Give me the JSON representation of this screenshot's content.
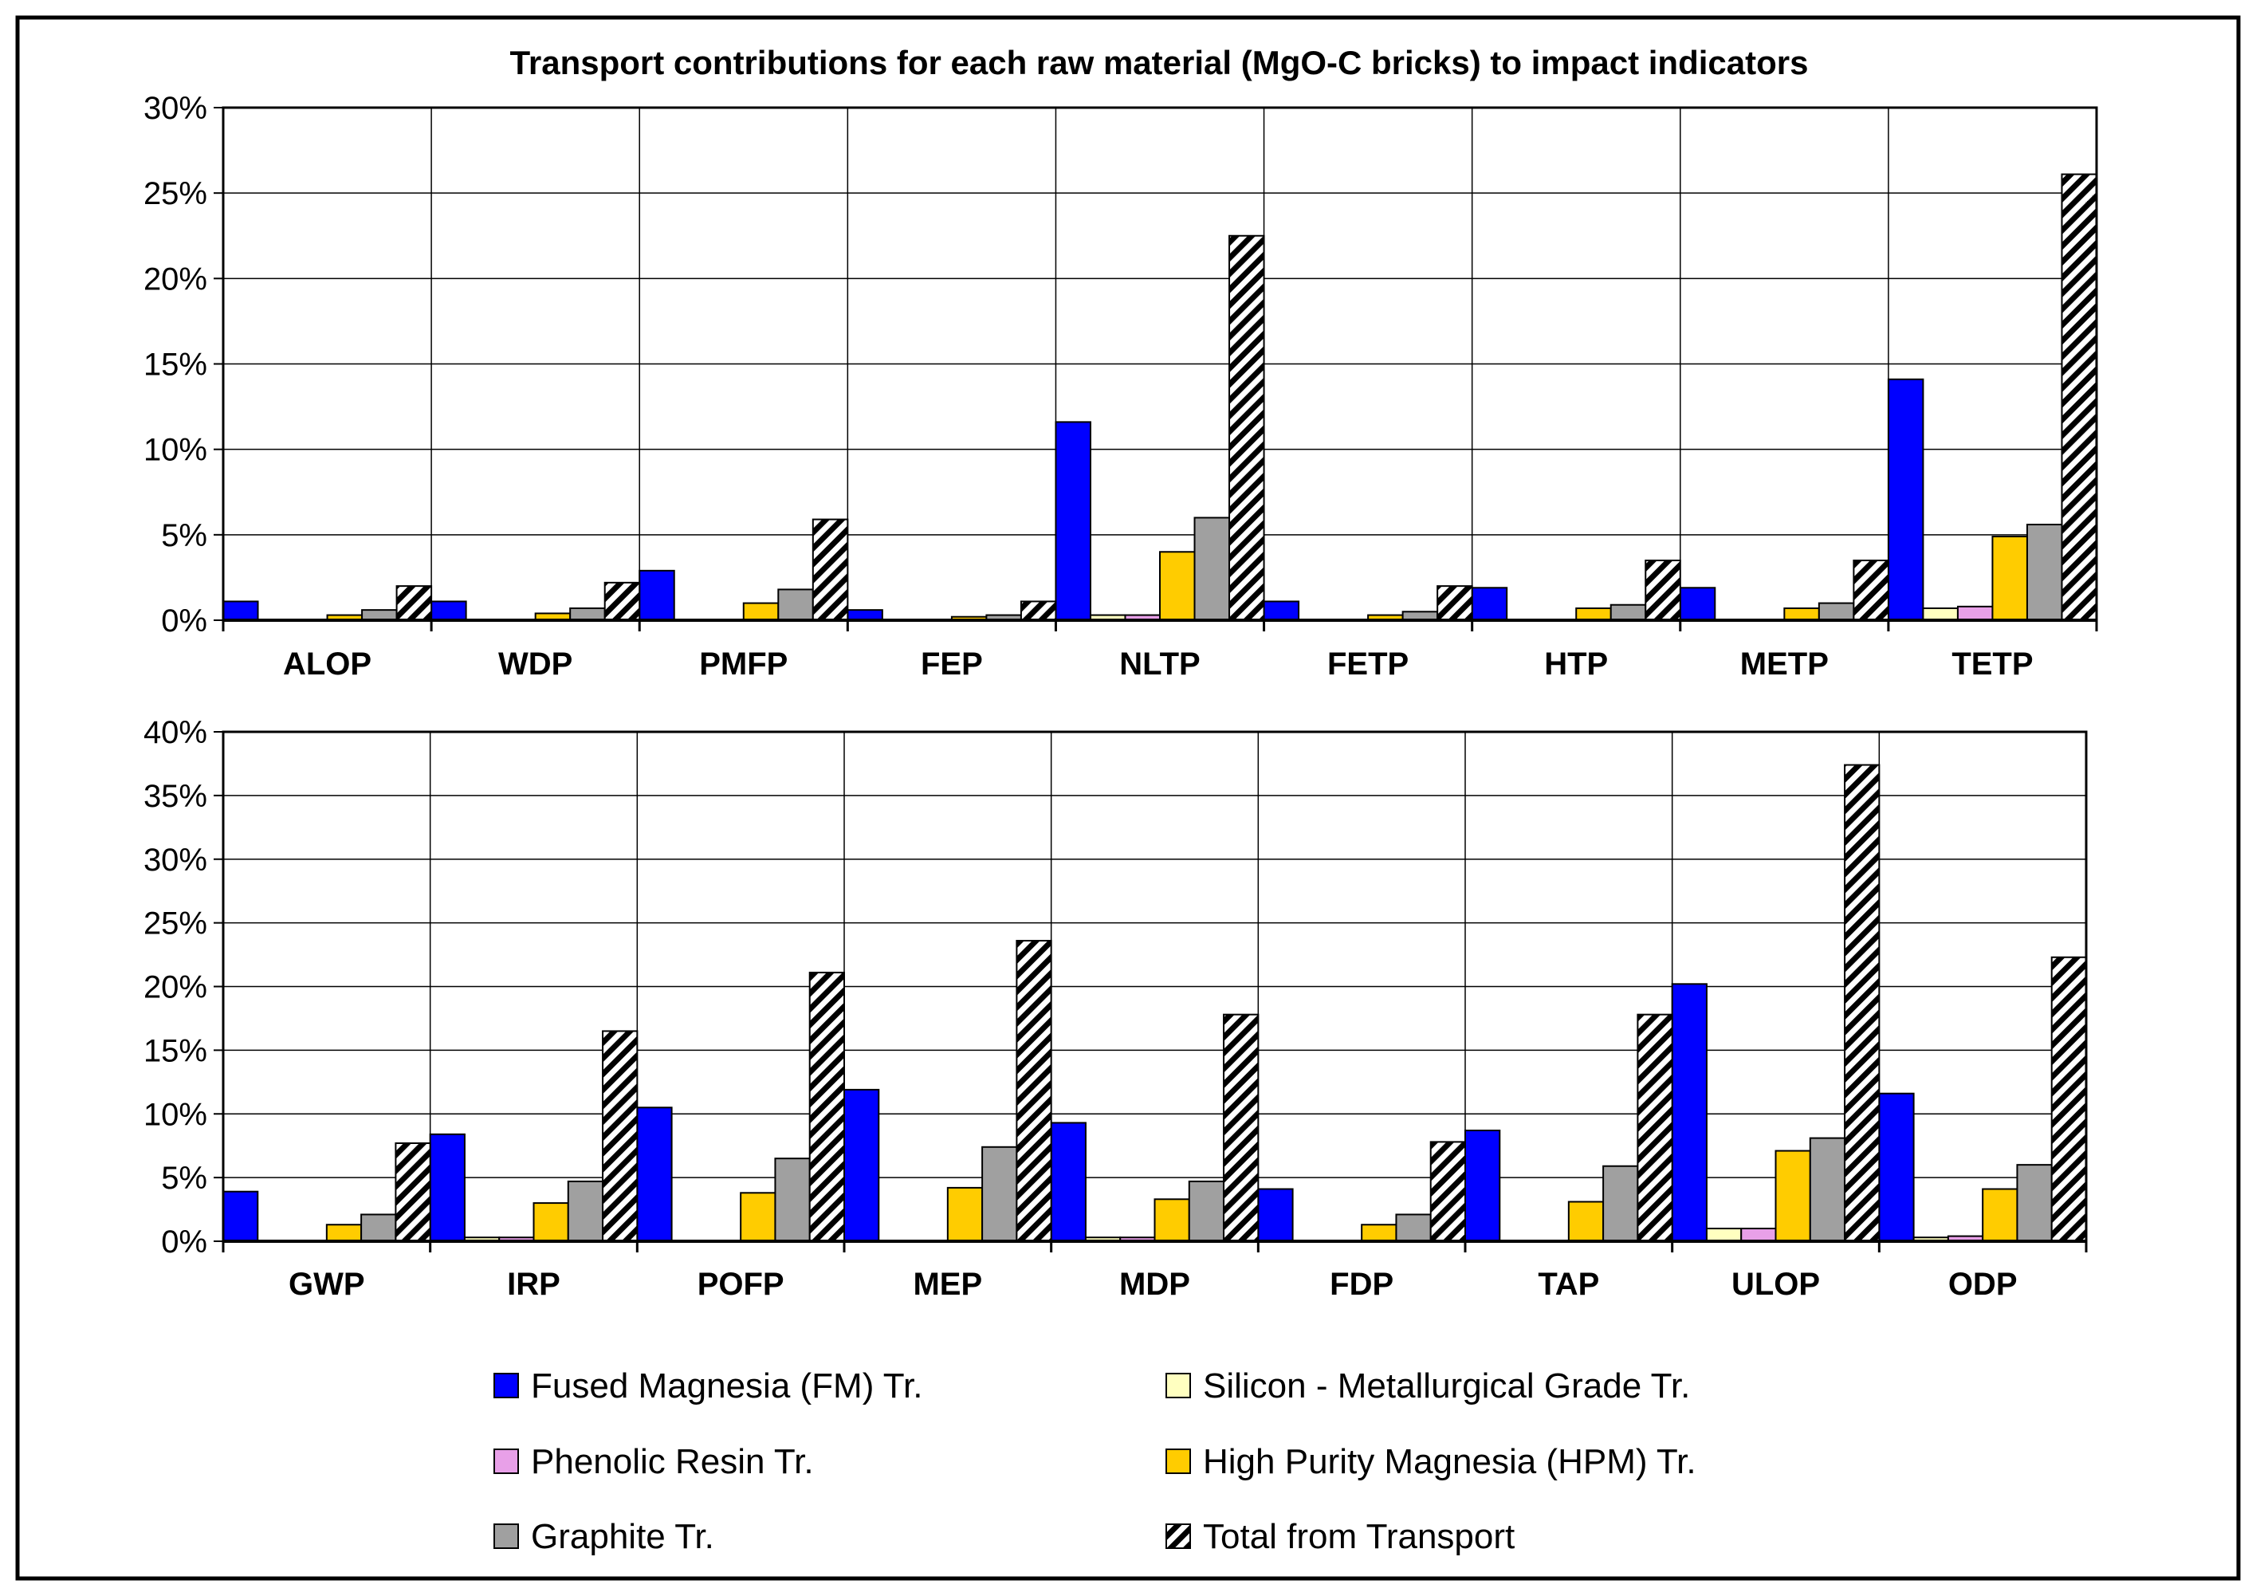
{
  "title": "Transport contributions for each raw material (MgO-C bricks) to impact indicators",
  "colors": {
    "fm": "#0000ff",
    "si": "#ffffc0",
    "pr": "#e8a0e8",
    "hpm": "#ffcc00",
    "gr": "#a0a0a0",
    "total_bg": "#ffffff",
    "total_stripe": "#000000"
  },
  "legend": [
    {
      "key": "fm",
      "label": "Fused Magnesia (FM) Tr."
    },
    {
      "key": "si",
      "label": "Silicon - Metallurgical Grade Tr."
    },
    {
      "key": "pr",
      "label": "Phenolic Resin Tr."
    },
    {
      "key": "hpm",
      "label": "High Purity Magnesia (HPM) Tr."
    },
    {
      "key": "gr",
      "label": "Graphite Tr."
    },
    {
      "key": "total",
      "label": "Total from Transport"
    }
  ],
  "chart_data": [
    {
      "type": "bar",
      "categories": [
        "ALOP",
        "WDP",
        "PMFP",
        "FEP",
        "NLTP",
        "FETP",
        "HTP",
        "METP",
        "TETP"
      ],
      "ylim": [
        0,
        30
      ],
      "yticks": [
        0,
        5,
        10,
        15,
        20,
        25,
        30
      ],
      "ytick_labels": [
        "0%",
        "5%",
        "10%",
        "15%",
        "20%",
        "25%",
        "30%"
      ],
      "ylabel": "",
      "xlabel": "",
      "series": [
        {
          "key": "fm",
          "name": "Fused Magnesia (FM) Tr.",
          "values": [
            1.1,
            1.1,
            2.9,
            0.6,
            11.6,
            1.1,
            1.9,
            1.9,
            14.1
          ]
        },
        {
          "key": "si",
          "name": "Silicon - Metallurgical Grade Tr.",
          "values": [
            0,
            0,
            0,
            0,
            0.3,
            0,
            0,
            0,
            0.7
          ]
        },
        {
          "key": "pr",
          "name": "Phenolic Resin Tr.",
          "values": [
            0,
            0,
            0,
            0,
            0.3,
            0,
            0,
            0,
            0.8
          ]
        },
        {
          "key": "hpm",
          "name": "High Purity Magnesia (HPM) Tr.",
          "values": [
            0.3,
            0.4,
            1.0,
            0.2,
            4.0,
            0.3,
            0.7,
            0.7,
            4.9
          ]
        },
        {
          "key": "gr",
          "name": "Graphite Tr.",
          "values": [
            0.6,
            0.7,
            1.8,
            0.3,
            6.0,
            0.5,
            0.9,
            1.0,
            5.6
          ]
        },
        {
          "key": "total",
          "name": "Total from Transport",
          "values": [
            2.0,
            2.2,
            5.9,
            1.1,
            22.5,
            2.0,
            3.5,
            3.5,
            26.1
          ]
        }
      ]
    },
    {
      "type": "bar",
      "categories": [
        "GWP",
        "IRP",
        "POFP",
        "MEP",
        "MDP",
        "FDP",
        "TAP",
        "ULOP",
        "ODP"
      ],
      "ylim": [
        0,
        40
      ],
      "yticks": [
        0,
        5,
        10,
        15,
        20,
        25,
        30,
        35,
        40
      ],
      "ytick_labels": [
        "0%",
        "5%",
        "10%",
        "15%",
        "20%",
        "25%",
        "30%",
        "35%",
        "40%"
      ],
      "ylabel": "",
      "xlabel": "",
      "series": [
        {
          "key": "fm",
          "name": "Fused Magnesia (FM) Tr.",
          "values": [
            3.9,
            8.4,
            10.5,
            11.9,
            9.3,
            4.1,
            8.7,
            20.2,
            11.6
          ]
        },
        {
          "key": "si",
          "name": "Silicon - Metallurgical Grade Tr.",
          "values": [
            0,
            0.3,
            0,
            0,
            0.3,
            0,
            0,
            1.0,
            0.3
          ]
        },
        {
          "key": "pr",
          "name": "Phenolic Resin Tr.",
          "values": [
            0,
            0.3,
            0,
            0,
            0.3,
            0,
            0,
            1.0,
            0.4
          ]
        },
        {
          "key": "hpm",
          "name": "High Purity Magnesia (HPM) Tr.",
          "values": [
            1.3,
            3.0,
            3.8,
            4.2,
            3.3,
            1.3,
            3.1,
            7.1,
            4.1
          ]
        },
        {
          "key": "gr",
          "name": "Graphite Tr.",
          "values": [
            2.1,
            4.7,
            6.5,
            7.4,
            4.7,
            2.1,
            5.9,
            8.1,
            6.0
          ]
        },
        {
          "key": "total",
          "name": "Total from Transport",
          "values": [
            7.7,
            16.5,
            21.1,
            23.6,
            17.8,
            7.8,
            17.8,
            37.4,
            22.3
          ]
        }
      ]
    }
  ]
}
